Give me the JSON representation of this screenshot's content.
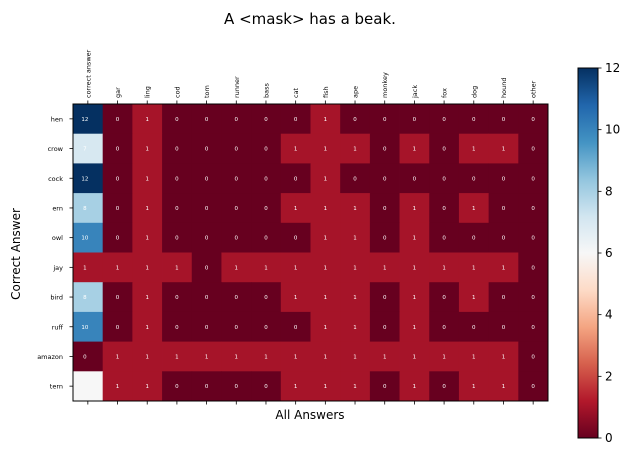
{
  "chart_data": {
    "type": "heatmap",
    "title": "A <mask> has a beak.",
    "xlabel": "All Answers",
    "ylabel": "Correct Answer",
    "x_categories": [
      "correct answer",
      "gar",
      "ling",
      "cod",
      "tom",
      "runner",
      "bass",
      "cat",
      "fish",
      "ape",
      "monkey",
      "jack",
      "fox",
      "dog",
      "hound",
      "other"
    ],
    "y_categories": [
      "hen",
      "crow",
      "cock",
      "ern",
      "owl",
      "jay",
      "bird",
      "ruff",
      "amazon",
      "tern"
    ],
    "values": [
      [
        12,
        0,
        1,
        0,
        0,
        0,
        0,
        0,
        1,
        0,
        0,
        0,
        0,
        0,
        0,
        0
      ],
      [
        7,
        0,
        1,
        0,
        0,
        0,
        0,
        1,
        1,
        1,
        0,
        1,
        0,
        1,
        1,
        0
      ],
      [
        12,
        0,
        1,
        0,
        0,
        0,
        0,
        0,
        1,
        0,
        0,
        0,
        0,
        0,
        0,
        0
      ],
      [
        8,
        0,
        1,
        0,
        0,
        0,
        0,
        1,
        1,
        1,
        0,
        1,
        0,
        1,
        0,
        0
      ],
      [
        10,
        0,
        1,
        0,
        0,
        0,
        0,
        0,
        1,
        1,
        0,
        1,
        0,
        0,
        0,
        0
      ],
      [
        1,
        1,
        1,
        1,
        0,
        1,
        1,
        1,
        1,
        1,
        1,
        1,
        1,
        1,
        1,
        0
      ],
      [
        8,
        0,
        1,
        0,
        0,
        0,
        0,
        1,
        1,
        1,
        0,
        1,
        0,
        1,
        0,
        0
      ],
      [
        10,
        0,
        1,
        0,
        0,
        0,
        0,
        0,
        1,
        1,
        0,
        1,
        0,
        0,
        0,
        0
      ],
      [
        0,
        1,
        1,
        1,
        1,
        1,
        1,
        1,
        1,
        1,
        1,
        1,
        1,
        1,
        1,
        0
      ],
      [
        6,
        1,
        1,
        0,
        0,
        0,
        0,
        1,
        1,
        1,
        0,
        1,
        0,
        1,
        1,
        0
      ]
    ],
    "cell_labels": [
      [
        "12",
        "0",
        "1",
        "0",
        "0",
        "0",
        "0",
        "0",
        "1",
        "0",
        "0",
        "0",
        "0",
        "0",
        "0",
        "0"
      ],
      [
        "7",
        "0",
        "1",
        "0",
        "0",
        "0",
        "0",
        "1",
        "1",
        "1",
        "0",
        "1",
        "0",
        "1",
        "1",
        "0"
      ],
      [
        "12",
        "0",
        "1",
        "0",
        "0",
        "0",
        "0",
        "0",
        "1",
        "0",
        "0",
        "0",
        "0",
        "0",
        "0",
        "0"
      ],
      [
        "8",
        "0",
        "1",
        "0",
        "0",
        "0",
        "0",
        "1",
        "1",
        "1",
        "0",
        "1",
        "0",
        "1",
        "0",
        "0"
      ],
      [
        "10",
        "0",
        "1",
        "0",
        "0",
        "0",
        "0",
        "0",
        "1",
        "1",
        "0",
        "1",
        "0",
        "0",
        "0",
        "0"
      ],
      [
        "1",
        "1",
        "1",
        "1",
        "0",
        "1",
        "1",
        "1",
        "1",
        "1",
        "1",
        "1",
        "1",
        "1",
        "1",
        "0"
      ],
      [
        "8",
        "0",
        "1",
        "0",
        "0",
        "0",
        "0",
        "1",
        "1",
        "1",
        "0",
        "1",
        "0",
        "1",
        "0",
        "0"
      ],
      [
        "10",
        "0",
        "1",
        "0",
        "0",
        "0",
        "0",
        "0",
        "1",
        "1",
        "0",
        "1",
        "0",
        "0",
        "0",
        "0"
      ],
      [
        "0",
        "1",
        "1",
        "1",
        "1",
        "1",
        "1",
        "1",
        "1",
        "1",
        "1",
        "1",
        "1",
        "1",
        "1",
        "0"
      ],
      [
        "",
        "1",
        "1",
        "0",
        "0",
        "0",
        "0",
        "1",
        "1",
        "1",
        "0",
        "1",
        "0",
        "1",
        "1",
        "0"
      ]
    ],
    "colormap": "RdBu",
    "colormap_stops": [
      "#67001f",
      "#b2182b",
      "#d6604d",
      "#f4a582",
      "#fddbc7",
      "#f7f7f7",
      "#d1e5f0",
      "#92c5de",
      "#4393c3",
      "#2166ac",
      "#053061"
    ],
    "vmin": 0,
    "vmax": 12,
    "colorbar_ticks": [
      0,
      2,
      4,
      6,
      8,
      10,
      12
    ],
    "grid": false,
    "x_ticks_position": "top",
    "colorbar_position": "right"
  }
}
